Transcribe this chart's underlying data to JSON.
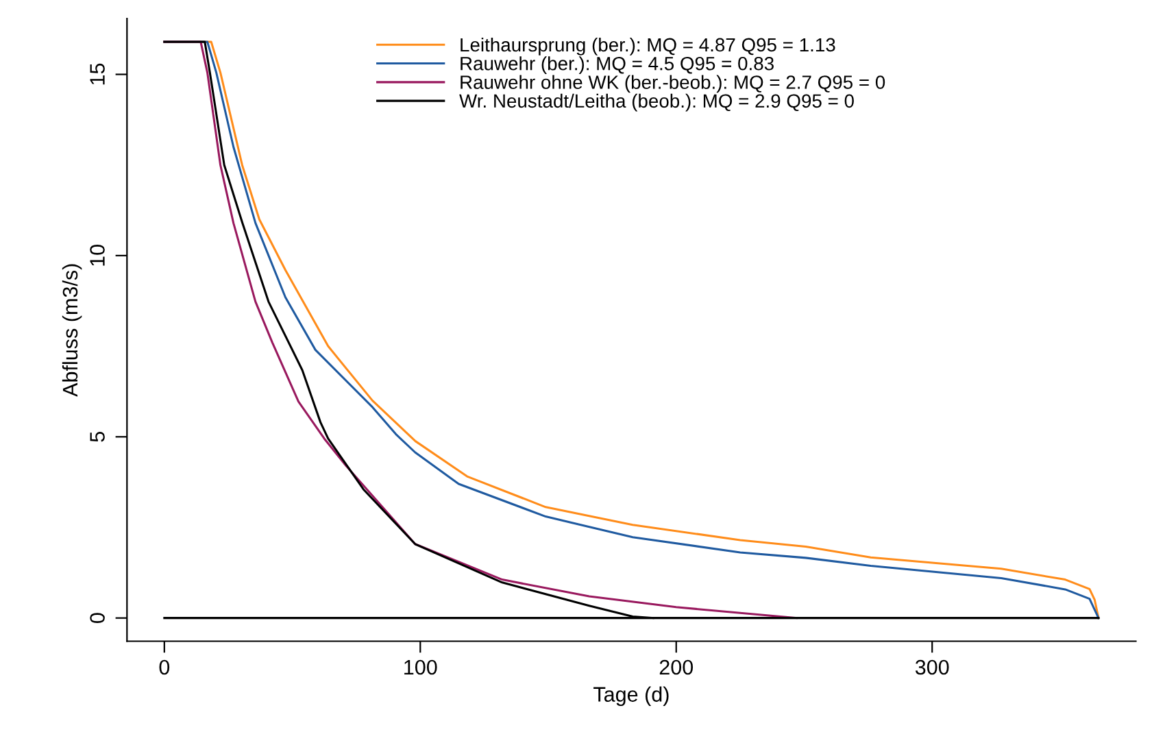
{
  "chart_data": {
    "type": "line",
    "xlabel": "Tage (d)",
    "ylabel": "Abfluss (m3/s)",
    "xlim": [
      -14.6,
      379.6
    ],
    "ylim": [
      -0.64,
      16.54
    ],
    "xticks": [
      0,
      100,
      200,
      300
    ],
    "yticks": [
      0,
      5,
      10,
      15
    ],
    "grid": false,
    "legend": "top",
    "marker": "none",
    "line_style": "solid",
    "series": [
      {
        "name": "Leithaursprung (ber.): MQ = 4.87 Q95 = 1.13",
        "color": "#ff8c1a",
        "x": [
          0,
          18.3,
          21.9,
          30.4,
          37.1,
          47.3,
          64,
          81.3,
          98.1,
          118.5,
          149,
          183,
          225,
          250.6,
          276,
          327,
          352,
          361.5,
          363.5,
          365
        ],
        "values": [
          15.9,
          15.9,
          15.05,
          12.5,
          11.0,
          9.6,
          7.5,
          6.0,
          4.88,
          3.9,
          3.06,
          2.57,
          2.15,
          1.97,
          1.67,
          1.36,
          1.06,
          0.8,
          0.5,
          0
        ]
      },
      {
        "name": "Rauwehr (ber.): MQ = 4.5 Q95 = 0.83",
        "color": "#1f5aa0",
        "x": [
          0,
          16.8,
          20.3,
          27,
          35.6,
          47.3,
          59,
          81.3,
          90.5,
          98,
          115,
          149,
          183,
          225,
          250.6,
          276,
          327,
          352,
          361.5,
          364,
          365
        ],
        "values": [
          15.9,
          15.9,
          15.05,
          13.0,
          10.9,
          8.85,
          7.4,
          5.82,
          5.07,
          4.57,
          3.7,
          2.8,
          2.23,
          1.81,
          1.66,
          1.44,
          1.1,
          0.79,
          0.53,
          0.15,
          0
        ]
      },
      {
        "name": "Rauwehr ohne WK (ber.-beob.): MQ = 2.7 Q95 = 0",
        "color": "#99195e",
        "x": [
          0,
          14.2,
          16.8,
          21.9,
          27,
          35.6,
          42.2,
          52.4,
          62.5,
          71,
          98,
          132,
          166,
          200,
          247
        ],
        "values": [
          15.9,
          15.9,
          15.05,
          12.5,
          10.9,
          8.73,
          7.6,
          5.97,
          4.95,
          4.2,
          2.04,
          1.06,
          0.6,
          0.3,
          0
        ]
      },
      {
        "name": "Wr. Neustadt/Leitha (beob.): MQ = 2.9 Q95 = 0",
        "color": "#000000",
        "x": [
          0,
          15.8,
          17.8,
          23.4,
          30.5,
          40.7,
          53.9,
          61,
          64,
          77.8,
          98,
          132,
          166,
          183,
          191
        ],
        "values": [
          15.9,
          15.9,
          15.05,
          12.5,
          10.9,
          8.73,
          6.84,
          5.4,
          4.95,
          3.55,
          2.04,
          0.98,
          0.34,
          0.04,
          0
        ]
      },
      {
        "color": "#000000",
        "x": [
          0,
          365
        ],
        "values": [
          0,
          0
        ]
      }
    ]
  }
}
